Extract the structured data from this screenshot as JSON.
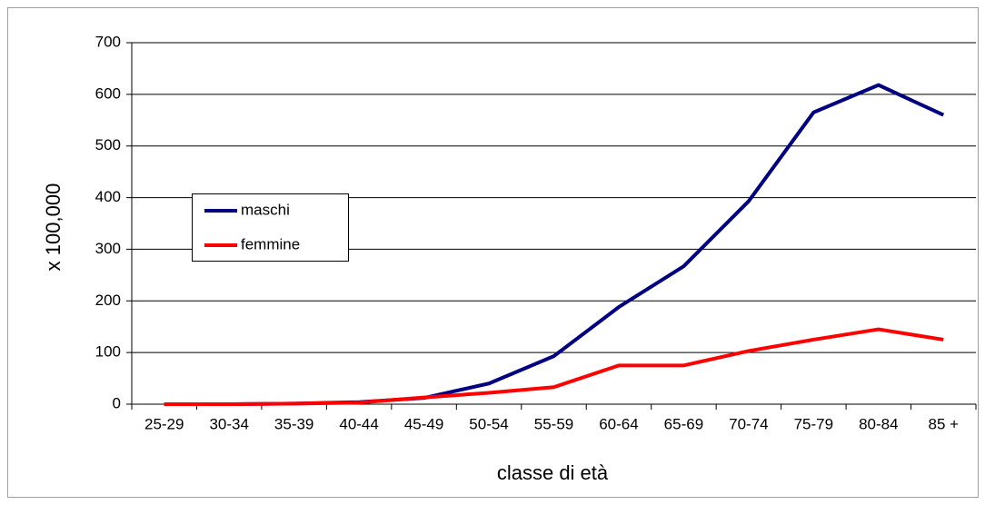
{
  "chart_data": {
    "type": "line",
    "x_label": "classe di età",
    "y_label": "x 100,000",
    "categories": [
      "25-29",
      "30-34",
      "35-39",
      "40-44",
      "45-49",
      "50-54",
      "55-59",
      "60-64",
      "65-69",
      "70-74",
      "75-79",
      "80-84",
      "85 +"
    ],
    "series": [
      {
        "name": "maschi",
        "color": "#000080",
        "values": [
          0,
          0,
          1,
          4,
          12,
          40,
          93,
          188,
          267,
          393,
          565,
          618,
          560
        ]
      },
      {
        "name": "femmine",
        "color": "#ff0000",
        "values": [
          0,
          0,
          1,
          3,
          13,
          22,
          33,
          75,
          75,
          103,
          125,
          145,
          125
        ]
      }
    ],
    "ylim": [
      0,
      700
    ],
    "yticks": [
      0,
      100,
      200,
      300,
      400,
      500,
      600,
      700
    ],
    "grid": true
  }
}
